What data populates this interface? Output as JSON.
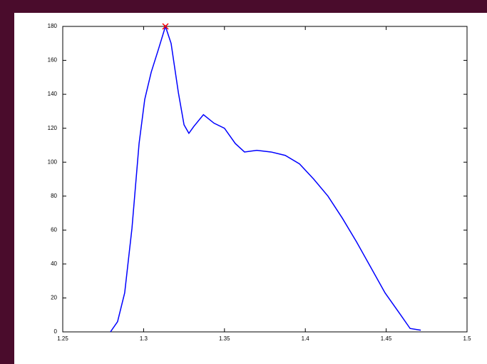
{
  "chart_data": {
    "type": "line",
    "x": [
      1.2795,
      1.2839,
      1.2883,
      1.2928,
      1.2972,
      1.3007,
      1.3047,
      1.309,
      1.3135,
      1.317,
      1.3215,
      1.325,
      1.328,
      1.331,
      1.337,
      1.3435,
      1.35,
      1.3567,
      1.3624,
      1.37,
      1.3788,
      1.3876,
      1.3964,
      1.4052,
      1.414,
      1.4229,
      1.4317,
      1.4405,
      1.4493,
      1.4582,
      1.4648,
      1.4714
    ],
    "series": [
      {
        "color": "#0000ff",
        "values": [
          0,
          6,
          23,
          61,
          111,
          137,
          153,
          166,
          180,
          170,
          141,
          122,
          117,
          121,
          128,
          123,
          120,
          111,
          106,
          107,
          106,
          104,
          99,
          90,
          80,
          67,
          53,
          38,
          23,
          11,
          2,
          1
        ]
      }
    ],
    "peak": {
      "x": 1.3135,
      "y": 180,
      "color": "#ff0000"
    },
    "xlim": [
      1.25,
      1.5
    ],
    "xticks": [
      1.25,
      1.3,
      1.35,
      1.4,
      1.45,
      1.5
    ],
    "ylim": [
      0,
      180
    ],
    "yticks": [
      0,
      20,
      40,
      60,
      80,
      100,
      120,
      140,
      160,
      180
    ]
  }
}
